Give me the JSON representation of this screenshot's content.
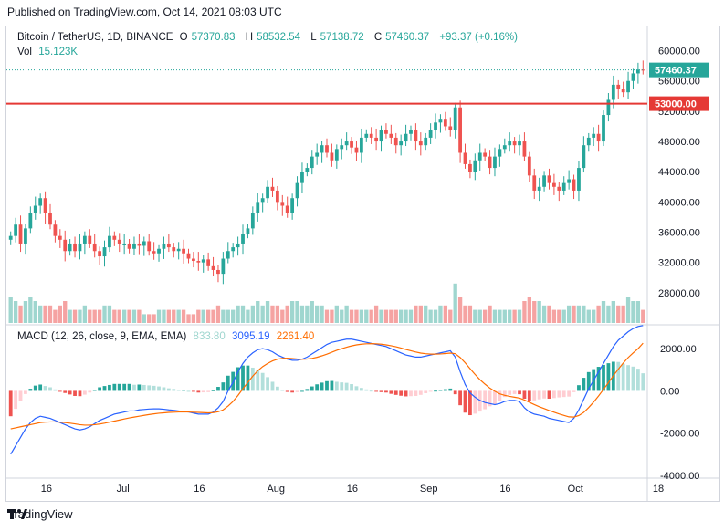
{
  "header": {
    "published": "Published on TradingView.com, Oct 14, 2021 08:03 UTC"
  },
  "legend": {
    "symbol": "Bitcoin / TetherUS, 1D, BINANCE",
    "o_label": "O",
    "o_val": "57370.83",
    "h_label": "H",
    "h_val": "58532.54",
    "l_label": "L",
    "l_val": "57138.72",
    "c_label": "C",
    "c_val": "57460.37",
    "change": "+93.37 (+0.16%)",
    "vol_label": "Vol",
    "vol_val": "15.123K"
  },
  "macd_legend": {
    "label": "MACD (12, 26, close, 9, EMA, EMA)",
    "hist": "833.80",
    "macd": "3095.19",
    "signal": "2261.40"
  },
  "price_axis": {
    "ticks": [
      "60000.00",
      "56000.00",
      "52000.00",
      "48000.00",
      "44000.00",
      "40000.00",
      "36000.00",
      "32000.00",
      "28000.00"
    ],
    "last_price_tag": "57460.37",
    "line_tag": "53000.00"
  },
  "macd_axis": {
    "ticks": [
      "2000.00",
      "0.00",
      "-2000.00",
      "-4000.00"
    ]
  },
  "time_axis": {
    "ticks": [
      "16",
      "Jul",
      "16",
      "Aug",
      "16",
      "Sep",
      "16",
      "Oct",
      "18"
    ]
  },
  "footer": {
    "brand": "TradingView"
  },
  "colors": {
    "up": "#26a69a",
    "down": "#ef5350",
    "macd": "#2962ff",
    "signal": "#ff6d00",
    "hline": "#e53935"
  },
  "chart_data": {
    "type": "candlestick",
    "title": "Bitcoin / TetherUS, 1D, BINANCE",
    "ylim": [
      24000,
      62000
    ],
    "horizontal_line": 53000,
    "candles_ohlc_close_path": [
      35500,
      37000,
      34500,
      36500,
      38500,
      39500,
      40500,
      38500,
      37000,
      35500,
      35000,
      33500,
      34500,
      33500,
      34500,
      35500,
      34500,
      33500,
      32800,
      34000,
      35500,
      35000,
      34500,
      34500,
      33800,
      34500,
      34200,
      34800,
      33500,
      33200,
      33800,
      34500,
      34000,
      33500,
      33800,
      33200,
      32500,
      32200,
      32000,
      32400,
      31500,
      31000,
      30500,
      32500,
      33500,
      34000,
      34500,
      35800,
      36500,
      38500,
      40000,
      40500,
      42000,
      41500,
      40000,
      39500,
      38500,
      40500,
      42500,
      44000,
      44500,
      46000,
      46500,
      47500,
      46500,
      45500,
      47000,
      47500,
      48000,
      47200,
      46500,
      48500,
      49000,
      48500,
      48000,
      49500,
      49000,
      48500,
      47500,
      48000,
      49000,
      49500,
      48000,
      47500,
      48500,
      49500,
      50500,
      51000,
      50000,
      49500,
      52500,
      46500,
      45000,
      44000,
      45500,
      46500,
      46000,
      44500,
      46000,
      47000,
      47500,
      48000,
      47500,
      48000,
      46000,
      43500,
      41500,
      42000,
      43500,
      42500,
      42000,
      41500,
      42500,
      43000,
      41500,
      44500,
      47500,
      48500,
      49000,
      48000,
      51500,
      53500,
      55500,
      55000,
      54500,
      56000,
      57000,
      57500,
      57460
    ],
    "volume_relative": [
      0.6,
      0.5,
      0.4,
      0.5,
      0.6,
      0.5,
      0.4,
      0.4,
      0.4,
      0.3,
      0.4,
      0.5,
      0.3,
      0.3,
      0.3,
      0.4,
      0.3,
      0.3,
      0.3,
      0.4,
      0.4,
      0.3,
      0.3,
      0.3,
      0.3,
      0.3,
      0.3,
      0.2,
      0.2,
      0.2,
      0.3,
      0.3,
      0.3,
      0.3,
      0.3,
      0.3,
      0.2,
      0.2,
      0.3,
      0.3,
      0.3,
      0.3,
      0.4,
      0.3,
      0.3,
      0.3,
      0.4,
      0.4,
      0.3,
      0.4,
      0.5,
      0.4,
      0.5,
      0.4,
      0.4,
      0.3,
      0.4,
      0.5,
      0.5,
      0.4,
      0.4,
      0.5,
      0.4,
      0.4,
      0.3,
      0.3,
      0.4,
      0.3,
      0.4,
      0.3,
      0.3,
      0.3,
      0.3,
      0.3,
      0.4,
      0.3,
      0.3,
      0.3,
      0.3,
      0.3,
      0.3,
      0.3,
      0.4,
      0.4,
      0.4,
      0.3,
      0.3,
      0.4,
      0.4,
      0.3,
      0.9,
      0.6,
      0.4,
      0.4,
      0.3,
      0.3,
      0.3,
      0.4,
      0.3,
      0.3,
      0.3,
      0.3,
      0.3,
      0.3,
      0.5,
      0.6,
      0.5,
      0.5,
      0.4,
      0.4,
      0.3,
      0.3,
      0.3,
      0.4,
      0.4,
      0.4,
      0.4,
      0.3,
      0.3,
      0.4,
      0.5,
      0.4,
      0.5,
      0.4,
      0.4,
      0.6,
      0.5,
      0.5,
      0.3
    ],
    "macd_ylim": [
      -4000,
      3000
    ],
    "macd_series": [
      -3000,
      -2600,
      -2200,
      -1800,
      -1500,
      -1300,
      -1200,
      -1250,
      -1300,
      -1400,
      -1500,
      -1600,
      -1700,
      -1800,
      -1850,
      -1800,
      -1700,
      -1550,
      -1400,
      -1300,
      -1200,
      -1100,
      -1050,
      -1000,
      -950,
      -950,
      -900,
      -880,
      -860,
      -850,
      -850,
      -870,
      -900,
      -920,
      -950,
      -980,
      -1000,
      -1050,
      -1100,
      -1100,
      -1100,
      -1000,
      -800,
      -500,
      0,
      400,
      900,
      1300,
      1600,
      1800,
      1950,
      2000,
      1950,
      1850,
      1700,
      1600,
      1500,
      1450,
      1450,
      1500,
      1600,
      1750,
      1900,
      2050,
      2200,
      2300,
      2350,
      2400,
      2450,
      2450,
      2400,
      2350,
      2300,
      2250,
      2200,
      2150,
      2100,
      2000,
      1900,
      1800,
      1700,
      1650,
      1600,
      1600,
      1650,
      1700,
      1750,
      1800,
      1850,
      1900,
      1600,
      900,
      300,
      -100,
      -300,
      -450,
      -550,
      -600,
      -650,
      -600,
      -500,
      -450,
      -450,
      -500,
      -800,
      -1000,
      -1100,
      -1150,
      -1200,
      -1300,
      -1350,
      -1400,
      -1450,
      -1500,
      -1300,
      -900,
      -400,
      100,
      500,
      900,
      1300,
      1700,
      2100,
      2400,
      2600,
      2800,
      2950,
      3050,
      3095
    ],
    "signal_series": [
      -1800,
      -1750,
      -1700,
      -1650,
      -1600,
      -1550,
      -1500,
      -1480,
      -1470,
      -1470,
      -1480,
      -1500,
      -1530,
      -1560,
      -1600,
      -1620,
      -1620,
      -1600,
      -1570,
      -1530,
      -1480,
      -1430,
      -1380,
      -1330,
      -1280,
      -1240,
      -1200,
      -1160,
      -1120,
      -1090,
      -1060,
      -1040,
      -1020,
      -1010,
      -1000,
      -1000,
      -1000,
      -1010,
      -1020,
      -1030,
      -1040,
      -1030,
      -990,
      -900,
      -720,
      -500,
      -220,
      100,
      400,
      700,
      950,
      1150,
      1300,
      1420,
      1500,
      1540,
      1550,
      1530,
      1510,
      1500,
      1510,
      1540,
      1590,
      1660,
      1740,
      1830,
      1920,
      2000,
      2070,
      2130,
      2180,
      2210,
      2230,
      2240,
      2230,
      2210,
      2180,
      2140,
      2090,
      2030,
      1960,
      1900,
      1840,
      1790,
      1760,
      1740,
      1740,
      1750,
      1770,
      1790,
      1760,
      1580,
      1330,
      1050,
      780,
      530,
      320,
      130,
      -20,
      -140,
      -210,
      -260,
      -300,
      -340,
      -430,
      -540,
      -650,
      -750,
      -840,
      -930,
      -1010,
      -1090,
      -1160,
      -1230,
      -1240,
      -1170,
      -1020,
      -790,
      -530,
      -240,
      70,
      390,
      720,
      1030,
      1320,
      1580,
      1800,
      2000,
      2261
    ],
    "histogram": [
      833.8
    ]
  }
}
